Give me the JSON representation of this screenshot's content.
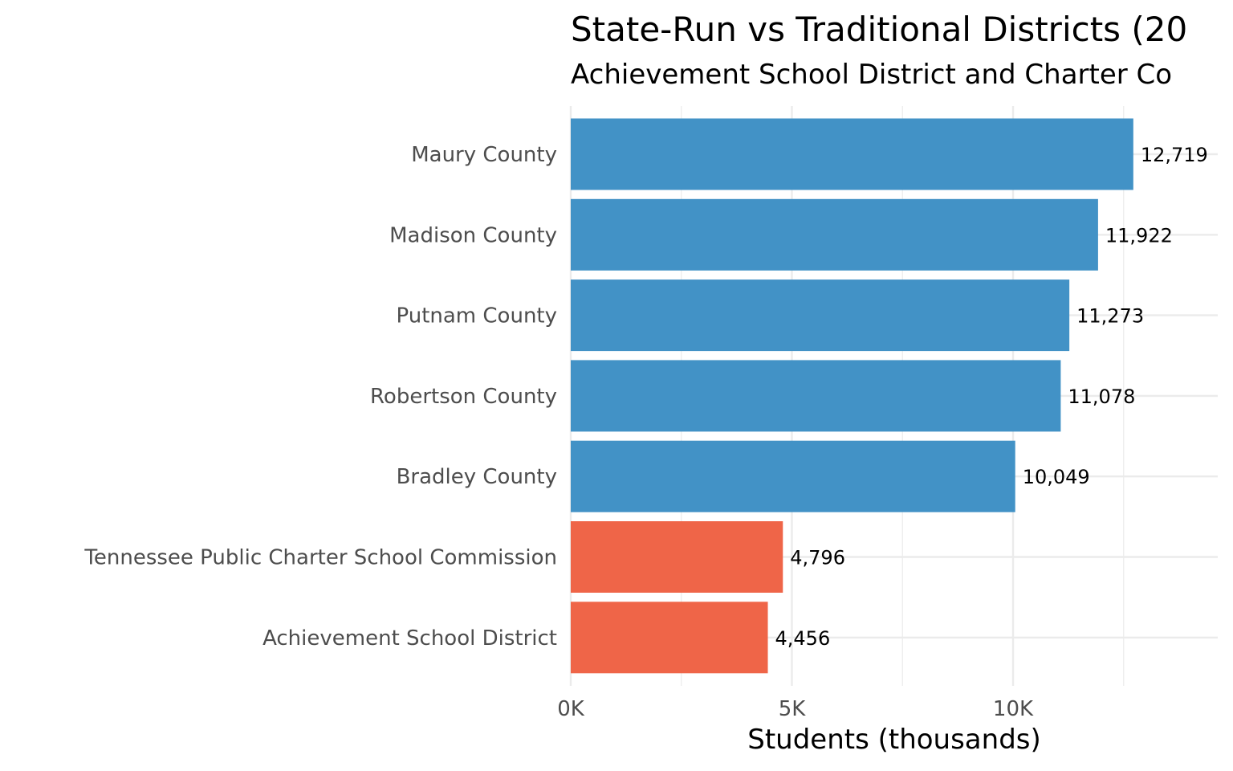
{
  "chart_data": {
    "type": "bar",
    "orientation": "horizontal",
    "title": "State-Run vs Traditional Districts (20",
    "subtitle": "Achievement School District and Charter Co",
    "xlabel": "Students (thousands)",
    "ylabel": "",
    "categories": [
      "Maury County",
      "Madison County",
      "Putnam County",
      "Robertson County",
      "Bradley County",
      "Tennessee Public Charter School Commission",
      "Achievement School District"
    ],
    "values": [
      12719,
      11922,
      11273,
      11078,
      10049,
      4796,
      4456
    ],
    "value_labels": [
      "12,719",
      "11,922",
      "11,273",
      "11,078",
      "10,049",
      "4,796",
      "4,456"
    ],
    "groups": [
      "traditional",
      "traditional",
      "traditional",
      "traditional",
      "traditional",
      "state-run",
      "state-run"
    ],
    "xlim": [
      0,
      14600
    ],
    "xticks": [
      0,
      5000,
      10000
    ],
    "xtick_labels": [
      "0K",
      "5K",
      "10K"
    ],
    "grid": true,
    "legend": "none",
    "colors": {
      "traditional": "#4292c6",
      "state-run": "#ef6548",
      "grid": "#ebebeb"
    }
  }
}
